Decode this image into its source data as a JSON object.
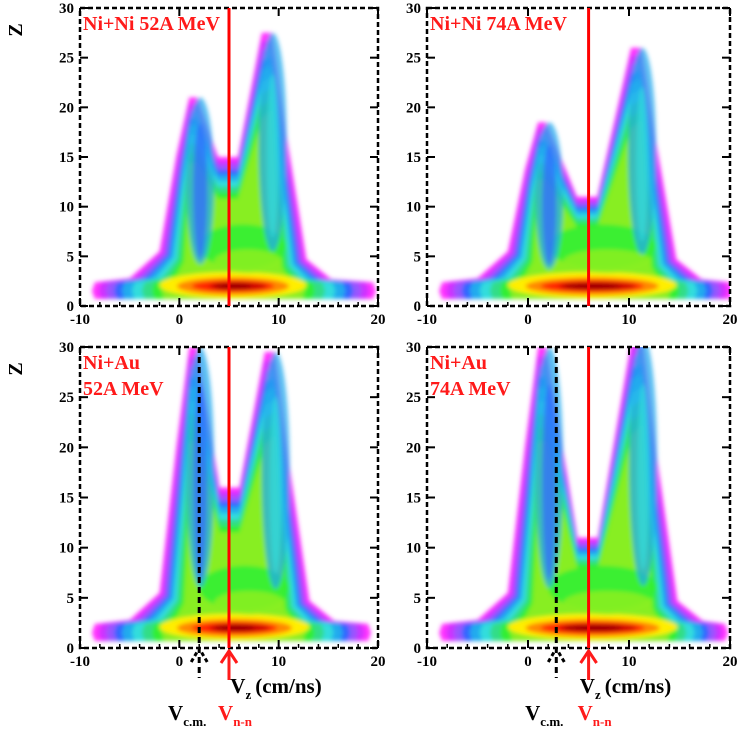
{
  "chart_data": [
    {
      "type": "heatmap",
      "title": "Ni+Ni 52A MeV",
      "title_lines": [
        "Ni+Ni 52A MeV"
      ],
      "ylabel": "Z",
      "xlim": [
        -10,
        20
      ],
      "ylim": [
        0,
        30
      ],
      "x_ticks": [
        "-10",
        "0",
        "10",
        "20"
      ],
      "y_ticks": [
        "0",
        "5",
        "10",
        "15",
        "20",
        "25",
        "30"
      ],
      "v_nn": 5.0,
      "features": {
        "low_z_xrange": [
          -8.5,
          19.5
        ],
        "target_peak": {
          "x": 1.5,
          "z": 21
        },
        "projectile_peak": {
          "x": 9.3,
          "z": 27.5
        },
        "valley_z": 15
      }
    },
    {
      "type": "heatmap",
      "title": "Ni+Ni 74A MeV",
      "title_lines": [
        "Ni+Ni 74A MeV"
      ],
      "xlim": [
        -10,
        20
      ],
      "ylim": [
        0,
        30
      ],
      "x_ticks": [
        "-10",
        "0",
        "10",
        "20"
      ],
      "y_ticks": [
        "0",
        "5",
        "10",
        "15",
        "20",
        "25",
        "30"
      ],
      "v_nn": 6.0,
      "features": {
        "low_z_xrange": [
          -8.5,
          20
        ],
        "target_peak": {
          "x": 1.5,
          "z": 18.5
        },
        "projectile_peak": {
          "x": 11.2,
          "z": 26
        },
        "valley_z": 11
      }
    },
    {
      "type": "heatmap",
      "title": "Ni+Au 52A MeV",
      "title_lines": [
        "Ni+Au",
        "52A MeV"
      ],
      "ylabel": "Z",
      "xlim": [
        -10,
        20
      ],
      "ylim": [
        0,
        30
      ],
      "x_ticks": [
        "-10",
        "0",
        "10",
        "20"
      ],
      "y_ticks": [
        "0",
        "5",
        "10",
        "15",
        "20",
        "25",
        "30"
      ],
      "v_nn": 5.0,
      "v_cm": 2.0,
      "xlabel_main": "V",
      "xlabel_sub": "z",
      "xlabel_unit": "(cm/ns)",
      "vcm_label": "V",
      "vcm_sub": "c.m.",
      "vnn_label": "V",
      "vnn_sub": "n-n",
      "features": {
        "low_z_xrange": [
          -8.5,
          19
        ],
        "target_peak": {
          "x": 1.5,
          "z": 30
        },
        "projectile_peak": {
          "x": 9.6,
          "z": 29.5
        },
        "valley_z": 16
      }
    },
    {
      "type": "heatmap",
      "title": "Ni+Au 74A MeV",
      "title_lines": [
        "Ni+Au",
        "74A MeV"
      ],
      "xlim": [
        -10,
        20
      ],
      "ylim": [
        0,
        30
      ],
      "x_ticks": [
        "-10",
        "0",
        "10",
        "20"
      ],
      "y_ticks": [
        "0",
        "5",
        "10",
        "15",
        "20",
        "25",
        "30"
      ],
      "v_nn": 6.0,
      "v_cm": 2.8,
      "xlabel_main": "V",
      "xlabel_sub": "z",
      "xlabel_unit": "(cm/ns)",
      "vcm_label": "V",
      "vcm_sub": "c.m.",
      "vnn_label": "V",
      "vnn_sub": "n-n",
      "features": {
        "low_z_xrange": [
          -8.5,
          19.5
        ],
        "target_peak": {
          "x": 1.5,
          "z": 30
        },
        "projectile_peak": {
          "x": 11.3,
          "z": 31
        },
        "valley_z": 11
      }
    }
  ],
  "colors": {
    "contour_scale": [
      "#ff33ff",
      "#cc33ff",
      "#9955ff",
      "#3366ff",
      "#22aaee",
      "#33dddd",
      "#33dd88",
      "#33ee33",
      "#88ee22",
      "#ffee00",
      "#ff8800",
      "#ff2200",
      "#cc0000",
      "#990000"
    ],
    "v_nn_line": "#ff0000",
    "v_cm_line": "#000000"
  }
}
